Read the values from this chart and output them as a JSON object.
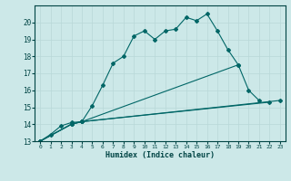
{
  "xlabel": "Humidex (Indice chaleur)",
  "bg_color": "#cce8e8",
  "grid_color": "#b8d8d8",
  "line_color": "#006666",
  "xlim": [
    -0.5,
    23.5
  ],
  "ylim": [
    13,
    21
  ],
  "xticks": [
    0,
    1,
    2,
    3,
    4,
    5,
    6,
    7,
    8,
    9,
    10,
    11,
    12,
    13,
    14,
    15,
    16,
    17,
    18,
    19,
    20,
    21,
    22,
    23
  ],
  "yticks": [
    13,
    14,
    15,
    16,
    17,
    18,
    19,
    20
  ],
  "lines": [
    {
      "x": [
        0,
        1,
        2,
        3,
        4,
        5,
        6,
        7,
        8,
        9,
        10,
        11,
        12,
        13,
        14,
        15,
        16,
        17,
        18,
        19
      ],
      "y": [
        13.0,
        13.4,
        13.9,
        14.1,
        14.15,
        15.1,
        16.3,
        17.6,
        18.0,
        19.2,
        19.5,
        19.0,
        19.5,
        19.6,
        20.3,
        20.1,
        20.5,
        19.5,
        18.4,
        17.5
      ]
    },
    {
      "x": [
        0,
        3,
        4,
        19,
        20,
        21
      ],
      "y": [
        13.0,
        14.0,
        14.15,
        17.5,
        16.0,
        15.4
      ]
    },
    {
      "x": [
        0,
        3,
        4,
        22
      ],
      "y": [
        13.0,
        14.0,
        14.15,
        15.3
      ]
    },
    {
      "x": [
        0,
        3,
        4,
        23
      ],
      "y": [
        13.0,
        14.0,
        14.15,
        15.4
      ]
    }
  ]
}
